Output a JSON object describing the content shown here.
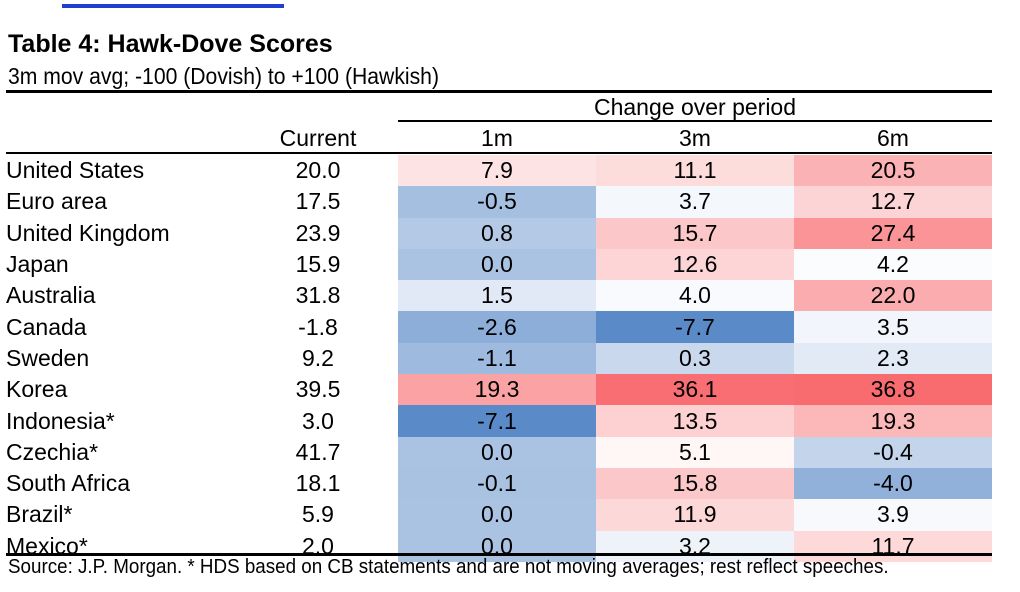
{
  "table": {
    "title": "Table 4: Hawk-Dove Scores",
    "subtitle": "3m mov avg; -100 (Dovish) to +100 (Hawkish)",
    "group_header": "Change over period",
    "columns": {
      "current": "Current",
      "m1": "1m",
      "m3": "3m",
      "m6": "6m"
    },
    "rows": [
      {
        "country": "United States",
        "current": "20.0",
        "m1": "7.9",
        "m3": "11.1",
        "m6": "20.5"
      },
      {
        "country": "Euro area",
        "current": "17.5",
        "m1": "-0.5",
        "m3": "3.7",
        "m6": "12.7"
      },
      {
        "country": "United Kingdom",
        "current": "23.9",
        "m1": "0.8",
        "m3": "15.7",
        "m6": "27.4"
      },
      {
        "country": "Japan",
        "current": "15.9",
        "m1": "0.0",
        "m3": "12.6",
        "m6": "4.2"
      },
      {
        "country": "Australia",
        "current": "31.8",
        "m1": "1.5",
        "m3": "4.0",
        "m6": "22.0"
      },
      {
        "country": "Canada",
        "current": "-1.8",
        "m1": "-2.6",
        "m3": "-7.7",
        "m6": "3.5"
      },
      {
        "country": "Sweden",
        "current": "9.2",
        "m1": "-1.1",
        "m3": "0.3",
        "m6": "2.3"
      },
      {
        "country": "Korea",
        "current": "39.5",
        "m1": "19.3",
        "m3": "36.1",
        "m6": "36.8"
      },
      {
        "country": "Indonesia*",
        "current": "3.0",
        "m1": "-7.1",
        "m3": "13.5",
        "m6": "19.3"
      },
      {
        "country": "Czechia*",
        "current": "41.7",
        "m1": "0.0",
        "m3": "5.1",
        "m6": "-0.4"
      },
      {
        "country": "South Africa",
        "current": "18.1",
        "m1": "-0.1",
        "m3": "15.8",
        "m6": "-4.0"
      },
      {
        "country": "Brazil*",
        "current": "5.9",
        "m1": "0.0",
        "m3": "11.9",
        "m6": "3.9"
      },
      {
        "country": "Mexico*",
        "current": "2.0",
        "m1": "0.0",
        "m3": "3.2",
        "m6": "11.7"
      }
    ],
    "source": "Source: J.P. Morgan. * HDS based on CB statements and are not moving averages; rest reflect speeches."
  },
  "colors": {
    "hawk_strong": "#f86a6e",
    "dove_strong": "#5b8ac8",
    "neutral": "#ffffff"
  }
}
